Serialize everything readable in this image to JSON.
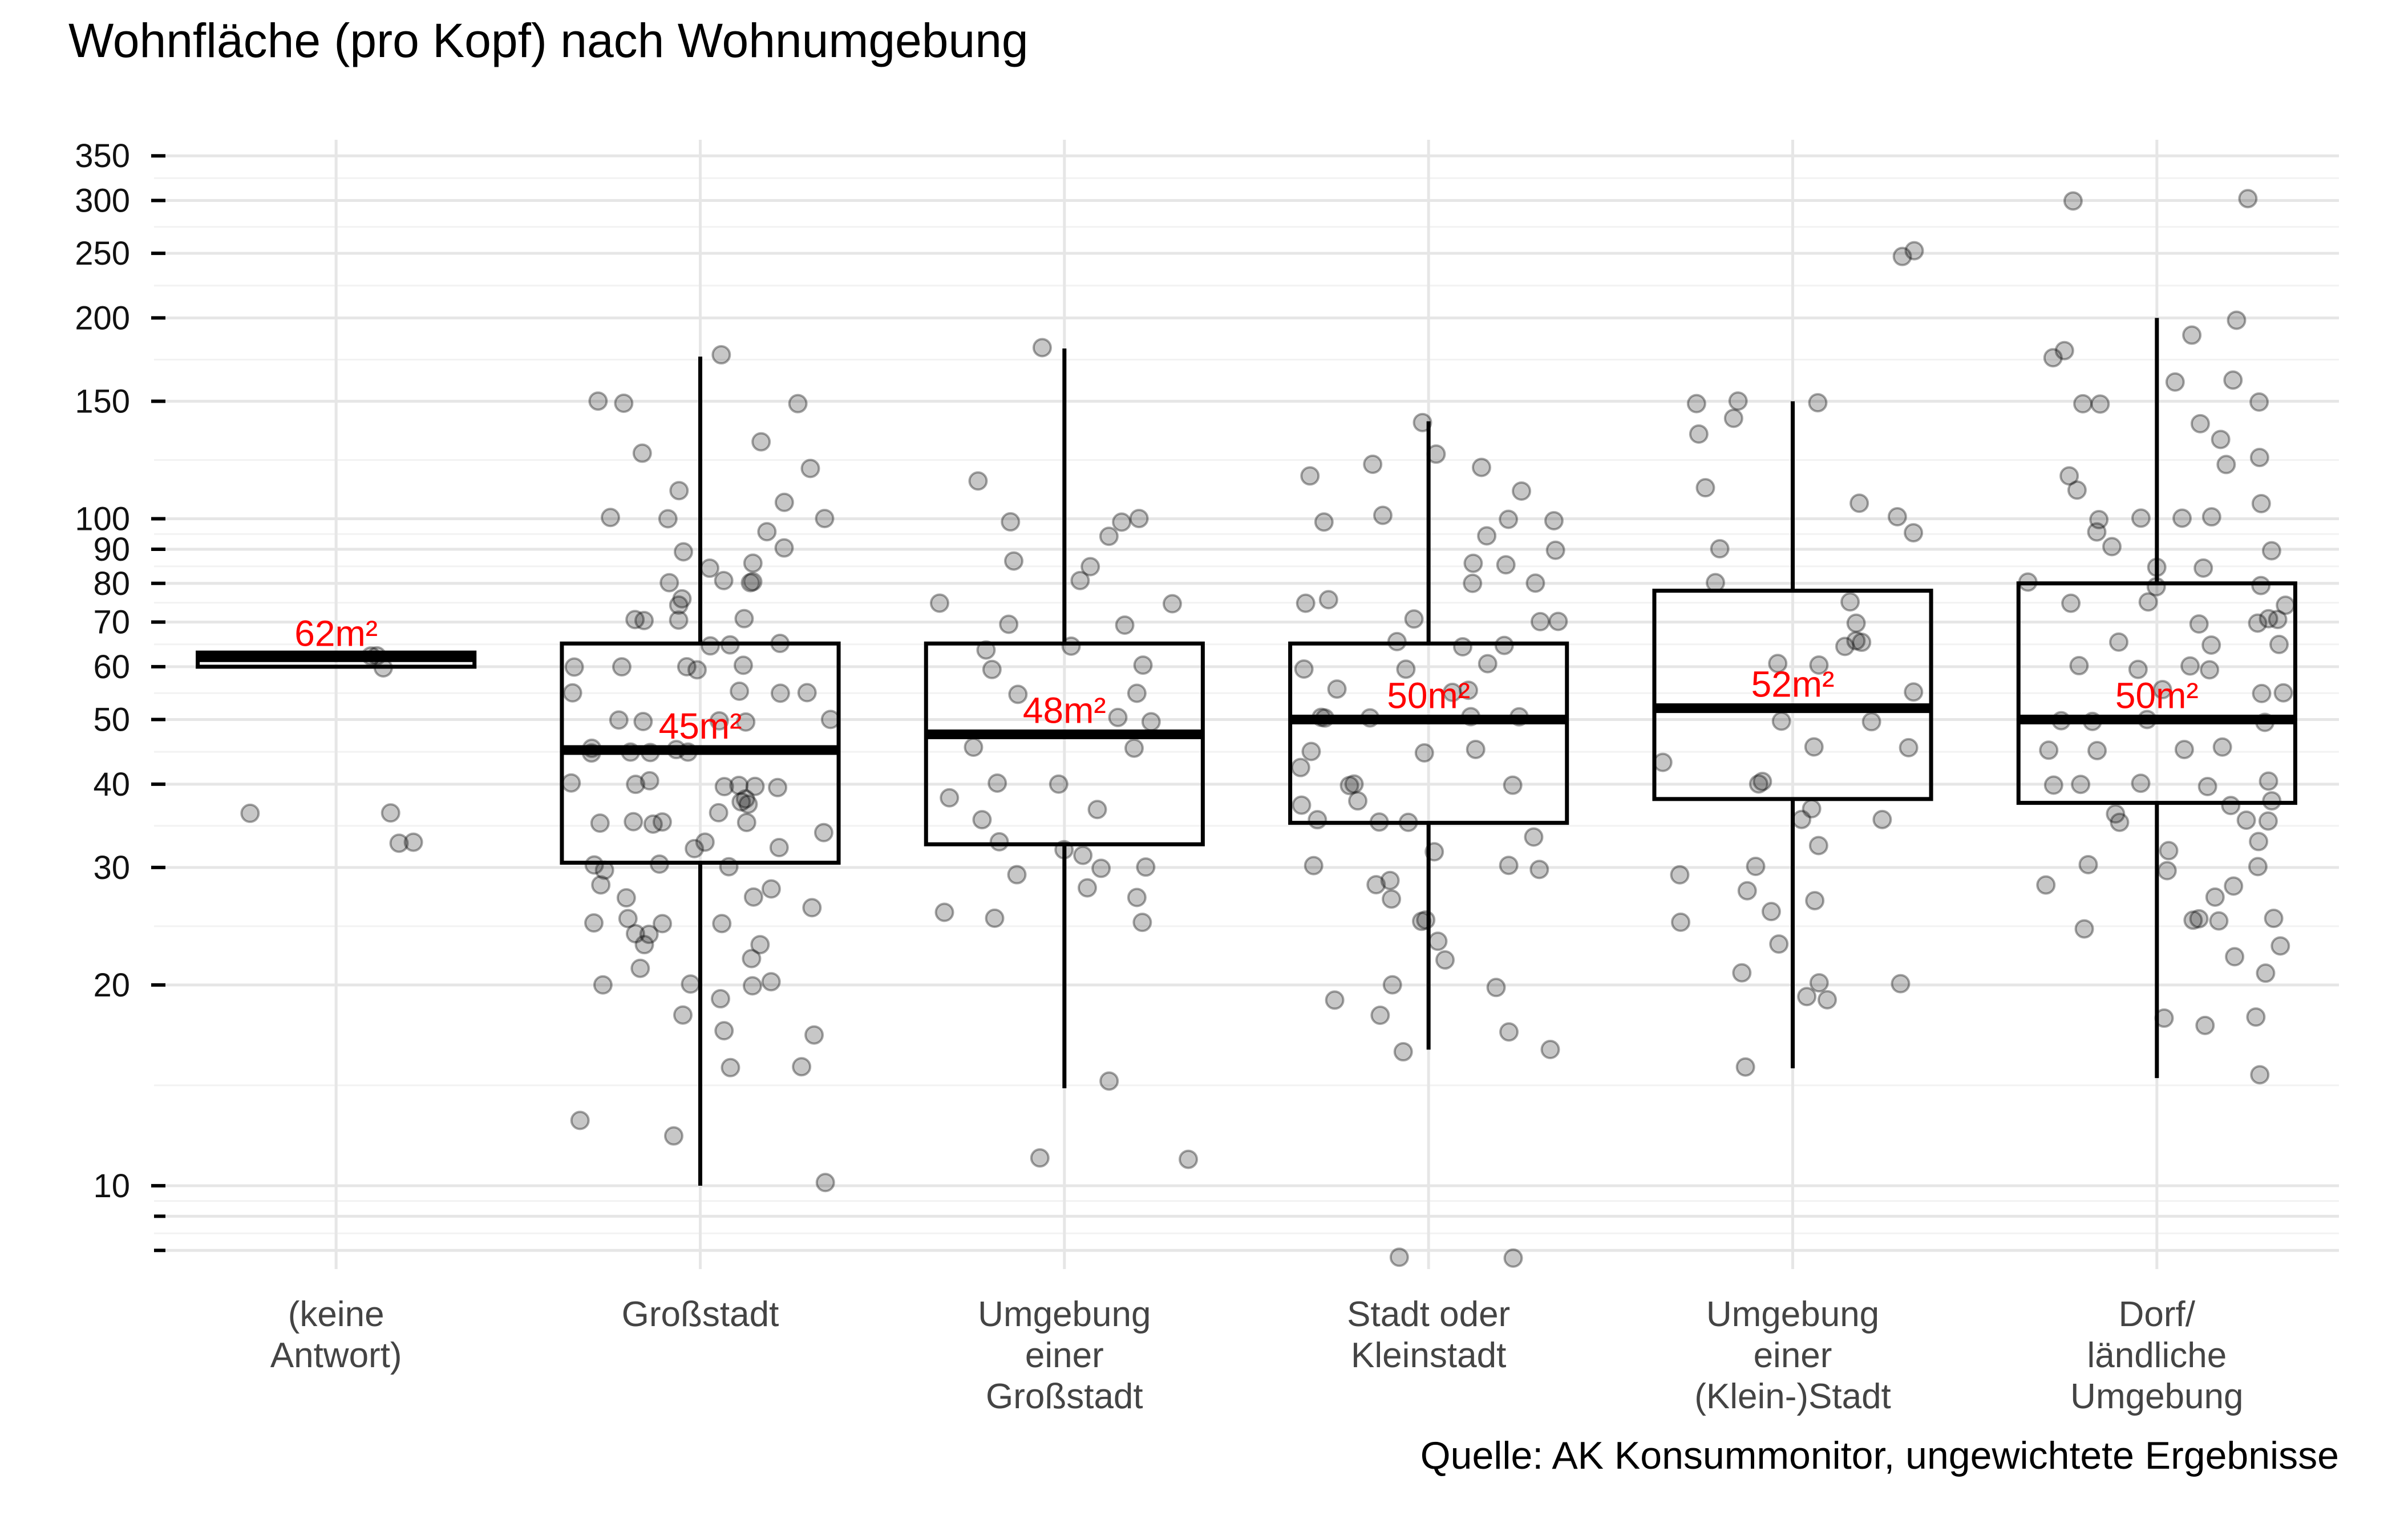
{
  "chart_data": {
    "type": "boxplot",
    "title": "Wohnfläche (pro Kopf) nach Wohnumgebung",
    "caption": "Quelle: AK Konsummonitor, ungewichtete Ergebnisse",
    "xlabel": "",
    "ylabel": "",
    "y_scale": "log",
    "ylim": [
      7.5,
      370
    ],
    "y_tick_labels": [
      {
        "value": 10,
        "label": "10"
      },
      {
        "value": 20,
        "label": "20"
      },
      {
        "value": 30,
        "label": "30"
      },
      {
        "value": 40,
        "label": "40"
      },
      {
        "value": 50,
        "label": "50"
      },
      {
        "value": 60,
        "label": "60"
      },
      {
        "value": 70,
        "label": "70"
      },
      {
        "value": 80,
        "label": "80"
      },
      {
        "value": 90,
        "label": "90"
      },
      {
        "value": 100,
        "label": "100"
      },
      {
        "value": 150,
        "label": "150"
      },
      {
        "value": 200,
        "label": "200"
      },
      {
        "value": 250,
        "label": "250"
      },
      {
        "value": 300,
        "label": "300"
      },
      {
        "value": 350,
        "label": "350"
      }
    ],
    "y_minor_ticks": [
      8,
      9
    ],
    "grid": true,
    "categories": [
      {
        "label": [
          "(keine",
          "Antwort)"
        ],
        "whisker_low": 60,
        "q1": 60,
        "median": 62,
        "q3": 63,
        "whisker_high": 63,
        "median_label": "62m²",
        "points": [
          62,
          63,
          60,
          36.5,
          36.5,
          32.5,
          32.5
        ]
      },
      {
        "label": [
          "Großstadt"
        ],
        "whisker_low": 10,
        "q1": 30.5,
        "median": 45,
        "q3": 65,
        "whisker_high": 175,
        "median_label": "45m²",
        "points": [
          175,
          150,
          150,
          150,
          130,
          125,
          120,
          110,
          105,
          100,
          100,
          100,
          95,
          90,
          90,
          85,
          85,
          80,
          80,
          80,
          80,
          75,
          75,
          70,
          70,
          70,
          70,
          65,
          65,
          65,
          60,
          60,
          60,
          60,
          60,
          55,
          55,
          55,
          55,
          50,
          50,
          50,
          50,
          50,
          45,
          45,
          45,
          45,
          45,
          45,
          40,
          40,
          40,
          40,
          40,
          40,
          40,
          38,
          38,
          37,
          36,
          35,
          35,
          35,
          35,
          35,
          34,
          33,
          32,
          32,
          30,
          30,
          30,
          30,
          28,
          28,
          27,
          27,
          26,
          25,
          25,
          25,
          25,
          24,
          24,
          23,
          23,
          22,
          21,
          20,
          20,
          20,
          20,
          19,
          18,
          17,
          17,
          15,
          15,
          12.5,
          12,
          10
        ]
      },
      {
        "label": [
          "Umgebung",
          "einer",
          "Großstadt"
        ],
        "whisker_low": 14,
        "q1": 32.5,
        "median": 47.5,
        "q3": 65,
        "whisker_high": 180,
        "median_label": "48m²",
        "points": [
          180,
          115,
          100,
          100,
          100,
          95,
          87,
          85,
          80,
          75,
          75,
          70,
          70,
          65,
          63,
          60,
          60,
          55,
          55,
          50,
          50,
          45,
          45,
          40,
          40,
          38,
          37,
          35,
          33,
          32,
          31,
          30,
          30,
          29,
          28,
          27,
          26,
          25,
          25,
          14.5,
          11,
          11
        ]
      },
      {
        "label": [
          "Stadt oder",
          "Kleinstadt"
        ],
        "whisker_low": 16,
        "q1": 35,
        "median": 50,
        "q3": 65,
        "whisker_high": 140,
        "median_label": "50m²",
        "points": [
          140,
          125,
          120,
          120,
          115,
          110,
          100,
          100,
          100,
          100,
          95,
          90,
          85,
          85,
          80,
          80,
          75,
          75,
          70,
          70,
          70,
          65,
          65,
          65,
          60,
          60,
          60,
          55,
          55,
          55,
          50,
          50,
          50,
          50,
          50,
          45,
          45,
          45,
          42,
          40,
          40,
          40,
          38,
          37,
          35,
          35,
          35,
          33,
          32,
          30,
          30,
          30,
          29,
          28,
          27,
          25,
          25,
          23,
          22,
          20,
          20,
          19,
          18,
          17,
          16,
          16,
          7.8,
          7.8
        ]
      },
      {
        "label": [
          "Umgebung",
          "einer",
          "(Klein-)Stadt"
        ],
        "whisker_low": 15,
        "q1": 38,
        "median": 52,
        "q3": 78,
        "whisker_high": 150,
        "median_label": "52m²",
        "points": [
          250,
          250,
          150,
          150,
          150,
          140,
          135,
          110,
          105,
          100,
          95,
          90,
          80,
          75,
          70,
          65,
          65,
          65,
          60,
          60,
          55,
          50,
          50,
          45,
          45,
          43,
          40,
          40,
          37,
          35,
          35,
          32,
          30,
          29,
          28,
          27,
          26,
          25,
          23,
          21,
          20,
          20,
          19,
          19,
          15
        ]
      },
      {
        "label": [
          "Dorf/",
          "ländliche",
          "Umgebung"
        ],
        "whisker_low": 14.5,
        "q1": 37.5,
        "median": 50,
        "q3": 80,
        "whisker_high": 200,
        "median_label": "50m²",
        "points": [
          300,
          300,
          200,
          190,
          180,
          175,
          160,
          160,
          150,
          150,
          150,
          140,
          130,
          125,
          120,
          115,
          110,
          105,
          100,
          100,
          100,
          100,
          95,
          90,
          90,
          85,
          85,
          80,
          80,
          80,
          75,
          75,
          75,
          70,
          70,
          70,
          70,
          65,
          65,
          65,
          60,
          60,
          60,
          60,
          55,
          55,
          55,
          50,
          50,
          50,
          50,
          45,
          45,
          45,
          45,
          40,
          40,
          40,
          40,
          40,
          38,
          37,
          36,
          35,
          35,
          35,
          33,
          32,
          30,
          30,
          30,
          28,
          28,
          27,
          25,
          25,
          25,
          25,
          24,
          23,
          22,
          21,
          18,
          18,
          17.5,
          14.5
        ]
      }
    ]
  }
}
